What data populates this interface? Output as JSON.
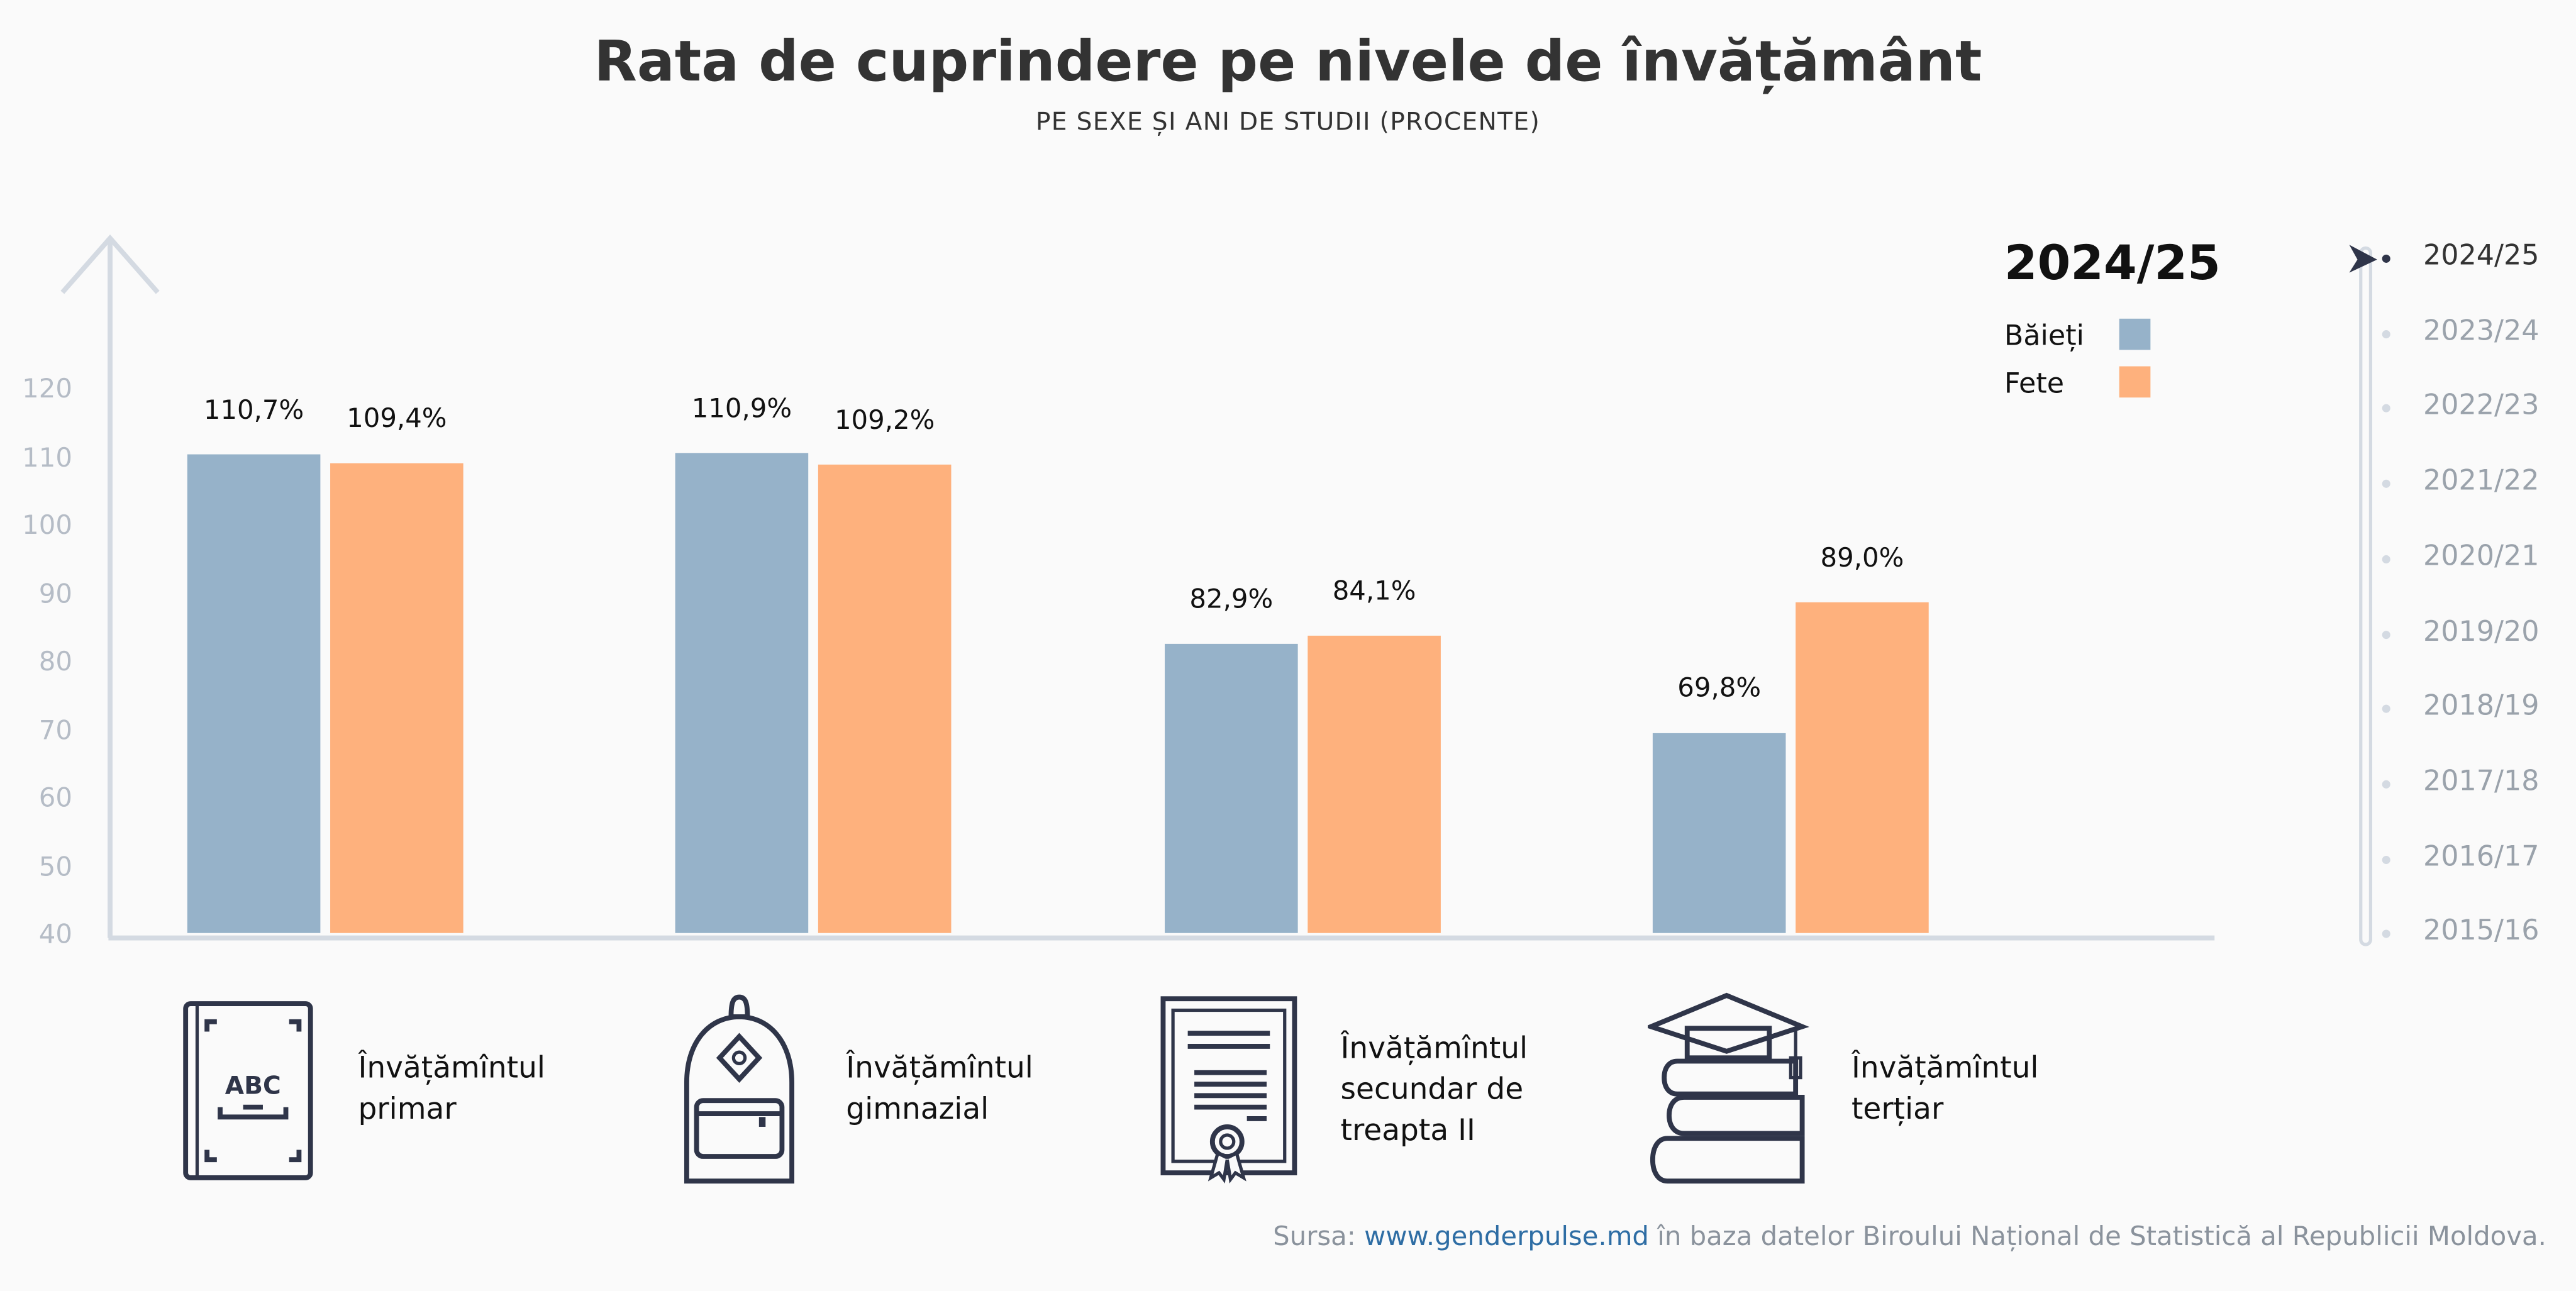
{
  "title": "Rata de cuprindere pe nivele de învățământ",
  "subtitle": "PE SEXE ȘI ANI DE STUDII (PROCENTE)",
  "chart_data": {
    "type": "bar",
    "categories": [
      "Învățămîntul primar",
      "Învățămîntul gimnazial",
      "Învățămîntul secundar de treapta II",
      "Învățămîntul terțiar"
    ],
    "category_lines": [
      [
        "Învățămîntul",
        "primar"
      ],
      [
        "Învățămîntul",
        "gimnazial"
      ],
      [
        "Învățămîntul",
        "secundar de",
        "treapta II"
      ],
      [
        "Învățămîntul",
        "terțiar"
      ]
    ],
    "category_icons": [
      "abc-book-icon",
      "backpack-icon",
      "diploma-icon",
      "books-graduation-cap-icon"
    ],
    "series": [
      {
        "name": "Băieți",
        "color": "#96b2c9",
        "values": [
          110.7,
          110.9,
          82.9,
          69.8
        ],
        "labels": [
          "110,7%",
          "110,9%",
          "82,9%",
          "69,8%"
        ]
      },
      {
        "name": "Fete",
        "color": "#feb17d",
        "values": [
          109.4,
          109.2,
          84.1,
          89.0
        ],
        "labels": [
          "109,4%",
          "109,2%",
          "84,1%",
          "89,0%"
        ]
      }
    ],
    "ylim": [
      40,
      120
    ],
    "yticks": [
      "120",
      "110",
      "100",
      "90",
      "80",
      "70",
      "60",
      "50",
      "40"
    ],
    "grid": false,
    "legend_placement": "top-right",
    "legend_title": "2024/25"
  },
  "timeline": {
    "selected": "2024/25",
    "items": [
      "2024/25",
      "2023/24",
      "2022/23",
      "2021/22",
      "2020/21",
      "2019/20",
      "2018/19",
      "2017/18",
      "2016/17",
      "2015/16"
    ]
  },
  "source": {
    "prefix": "Sursa: ",
    "link": "www.genderpulse.md",
    "suffix": " în baza datelor Biroului Național de Statistică al Republicii Moldova."
  }
}
